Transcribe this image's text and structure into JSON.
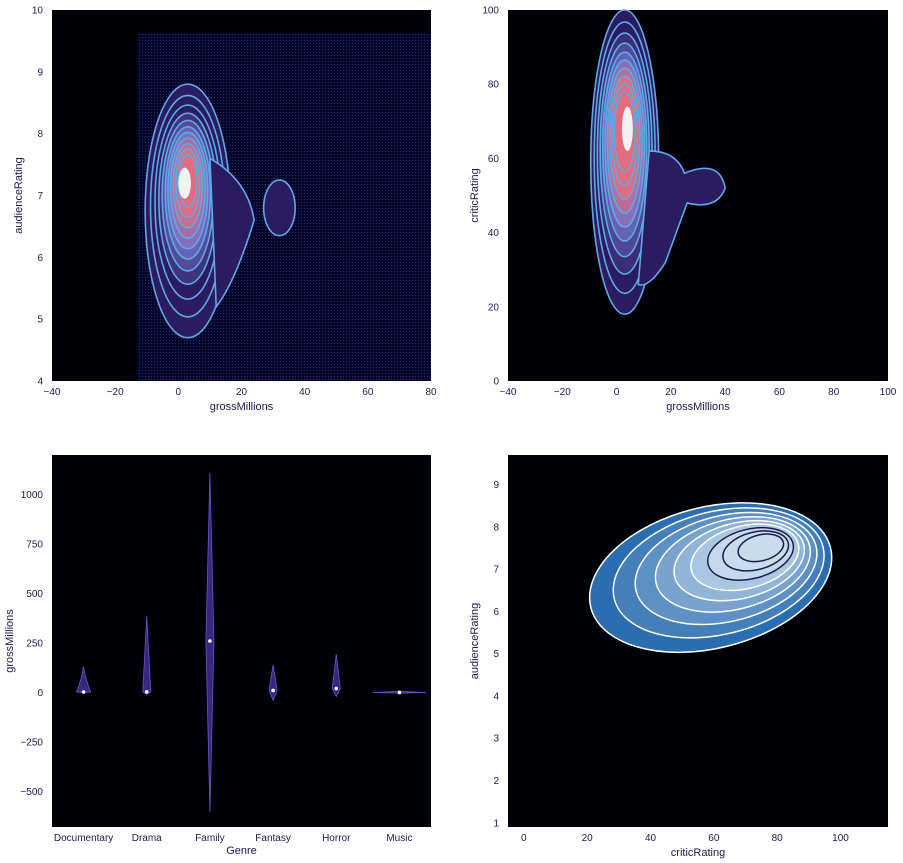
{
  "chart_data": [
    {
      "type": "kde_contour",
      "panel": "top-left",
      "xlabel": "grossMillions",
      "ylabel": "audienceRating",
      "xlim": [
        -40,
        80
      ],
      "ylim": [
        4,
        10
      ],
      "xticks": [
        -40,
        -20,
        0,
        20,
        40,
        60,
        80
      ],
      "yticks": [
        4,
        5,
        6,
        7,
        8,
        9,
        10
      ],
      "shaded": true,
      "density_peak": {
        "x": 2,
        "y": 7.2
      },
      "secondary_mode": {
        "x": 32,
        "y": 6.8
      },
      "colors": {
        "background": "#000008",
        "low": "#2b1b60",
        "mid": "#7070c8",
        "high": "#e06c80",
        "line": "#5fa8e6"
      }
    },
    {
      "type": "kde_contour",
      "panel": "top-right",
      "xlabel": "grossMillions",
      "ylabel": "criticRating",
      "xlim": [
        -40,
        100
      ],
      "ylim": [
        0,
        100
      ],
      "xticks": [
        -40,
        -20,
        0,
        20,
        40,
        60,
        80,
        100
      ],
      "yticks": [
        0,
        20,
        40,
        60,
        80,
        100
      ],
      "shaded": true,
      "density_peak": {
        "x": 2,
        "y": 68
      },
      "colors": {
        "background": "#000008",
        "low": "#2b1b60",
        "mid": "#7070c8",
        "high": "#e06c80",
        "line": "#5fa8e6"
      }
    },
    {
      "type": "violin",
      "panel": "bottom-left",
      "xlabel": "Genre",
      "ylabel": "grossMillions",
      "categories": [
        "Documentary",
        "Drama",
        "Family",
        "Fantasy",
        "Horror",
        "Music"
      ],
      "ylim": [
        -680,
        1200
      ],
      "yticks": [
        -500,
        -250,
        0,
        250,
        500,
        750,
        1000
      ],
      "series": [
        {
          "category": "Documentary",
          "min": 0,
          "max": 130,
          "median": 2
        },
        {
          "category": "Drama",
          "min": -10,
          "max": 385,
          "median": 3
        },
        {
          "category": "Family",
          "min": -605,
          "max": 1110,
          "median": 260
        },
        {
          "category": "Fantasy",
          "min": -40,
          "max": 140,
          "median": 10
        },
        {
          "category": "Horror",
          "min": -20,
          "max": 195,
          "median": 20
        },
        {
          "category": "Music",
          "min": -5,
          "max": 8,
          "median": 0
        }
      ],
      "colors": {
        "background": "#000008",
        "violin": "#3a2580",
        "median": "#ffffff"
      }
    },
    {
      "type": "kde_contour",
      "panel": "bottom-right",
      "xlabel": "criticRating",
      "ylabel": "audienceRating",
      "xlim": [
        -5,
        115
      ],
      "ylim": [
        0.9,
        9.7
      ],
      "xticks": [
        0,
        20,
        40,
        60,
        80,
        100
      ],
      "yticks": [
        1,
        2,
        3,
        4,
        5,
        6,
        7,
        8,
        9
      ],
      "shaded": true,
      "density_peak": {
        "x": 76,
        "y": 7.5
      },
      "colors": {
        "background": "#000008",
        "outer": "#2a6db0",
        "inner": "#c8dced",
        "line": "#ffffff",
        "core": "#1b1b4f"
      }
    }
  ]
}
